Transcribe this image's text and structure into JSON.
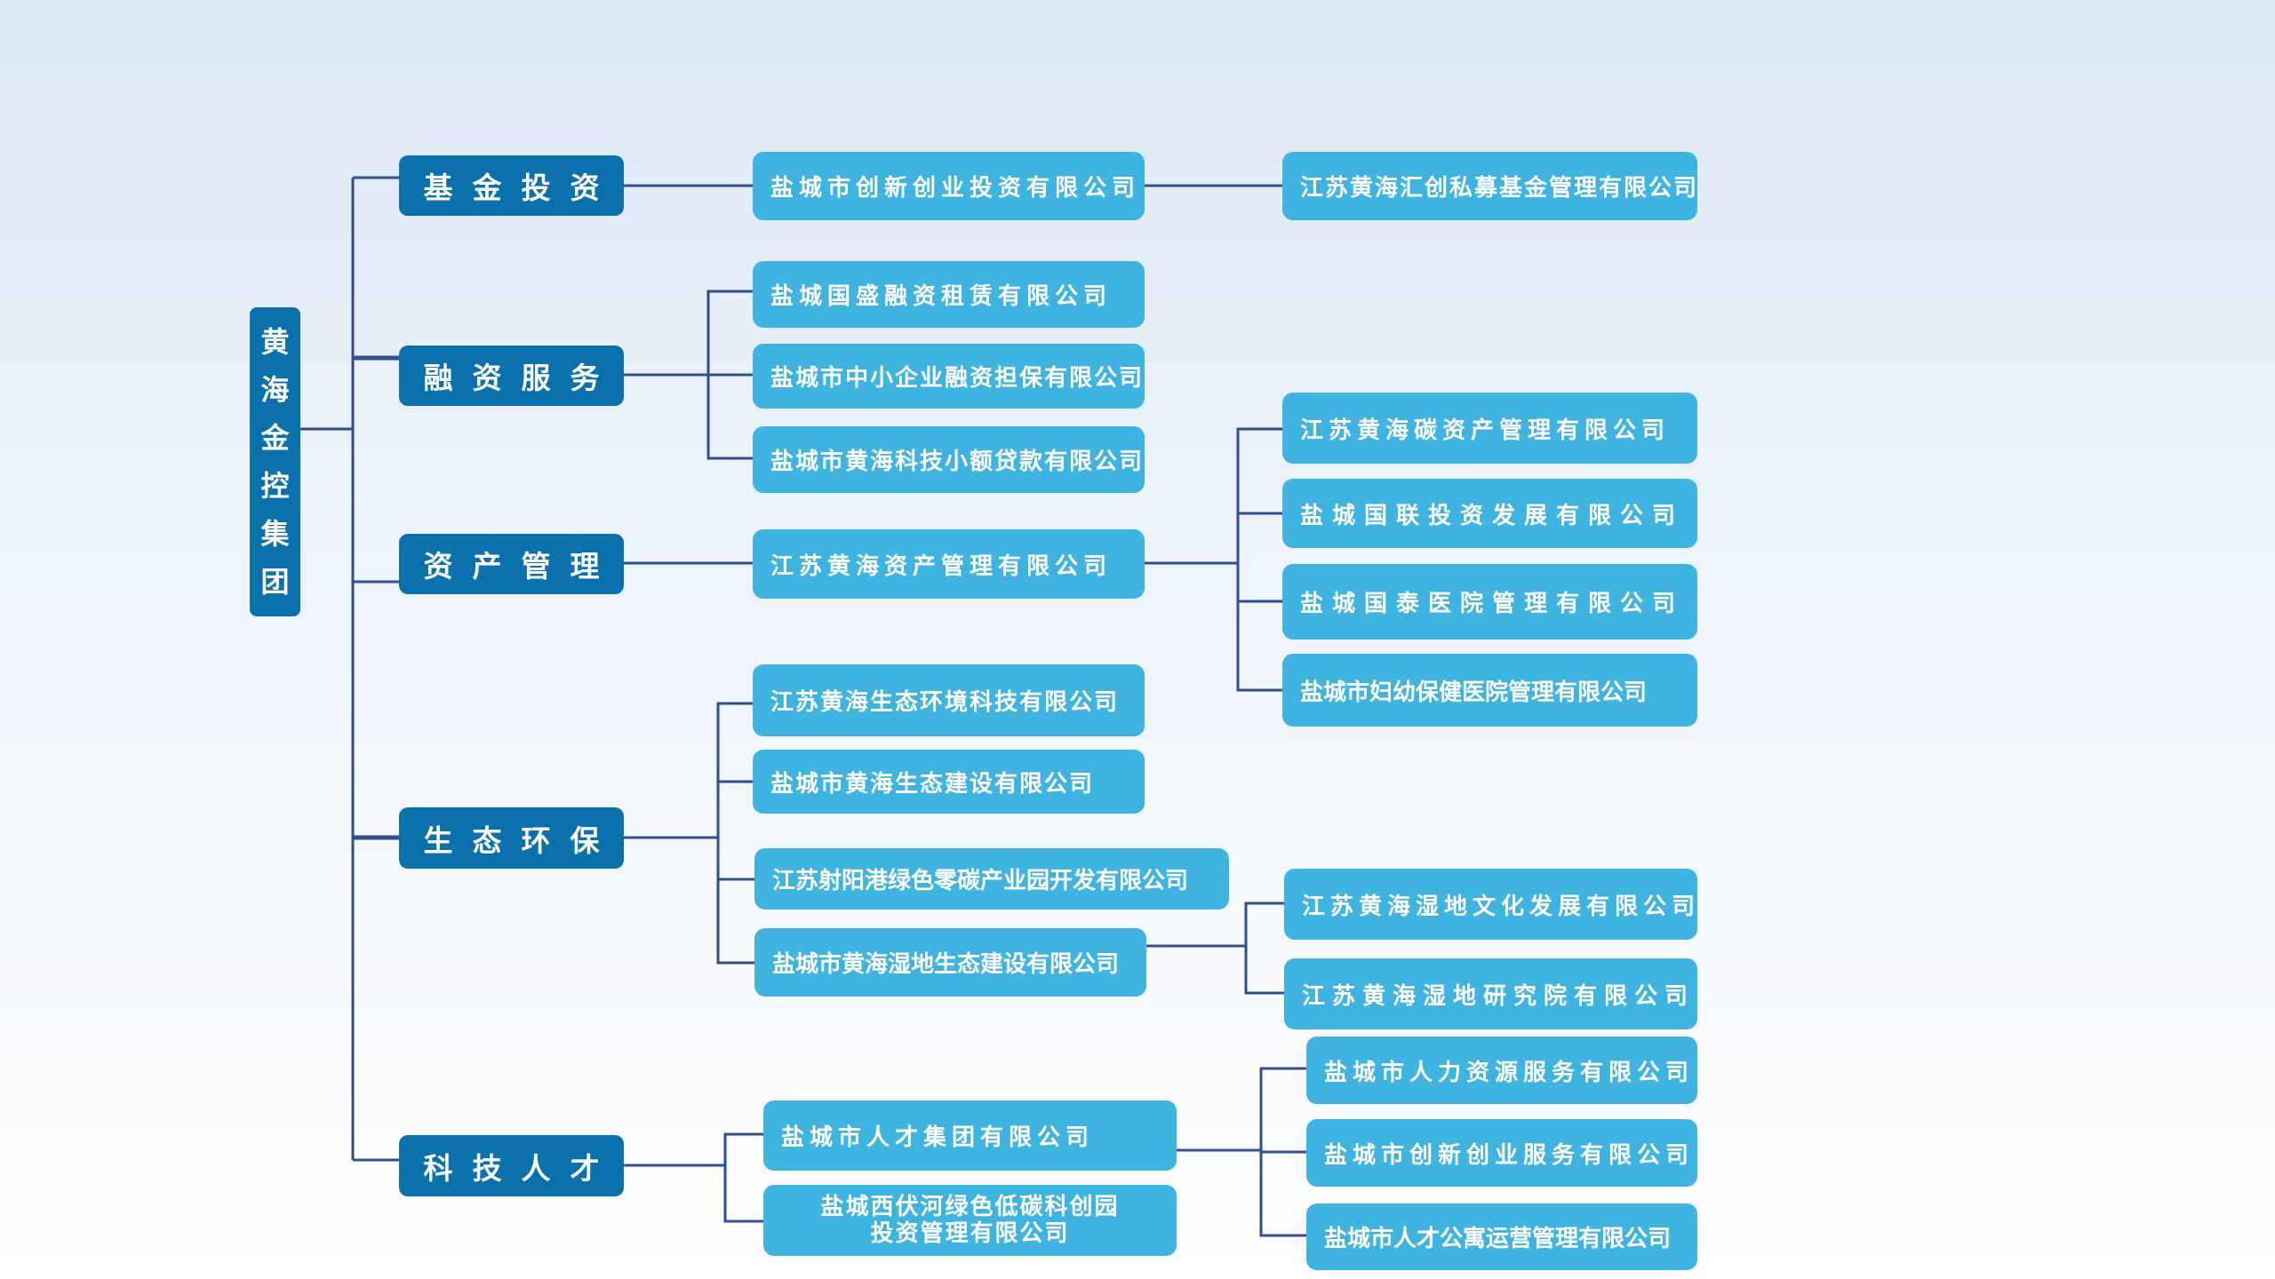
{
  "colors": {
    "level1": "#0a71ad",
    "company": "#40b4e0",
    "connector": "#2f4f8e"
  },
  "root": {
    "label": "黄海金控集团",
    "chars": [
      "黄",
      "海",
      "金",
      "控",
      "集",
      "团"
    ]
  },
  "segments": [
    {
      "label": "基金投资",
      "children": [
        {
          "label": "盐城市创新创业投资有限公司",
          "children": [
            {
              "label": "江苏黄海汇创私募基金管理有限公司"
            }
          ]
        }
      ]
    },
    {
      "label": "融资服务",
      "children": [
        {
          "label": "盐城国盛融资租赁有限公司"
        },
        {
          "label": "盐城市中小企业融资担保有限公司"
        },
        {
          "label": "盐城市黄海科技小额贷款有限公司"
        }
      ]
    },
    {
      "label": "资产管理",
      "children": [
        {
          "label": "江苏黄海资产管理有限公司",
          "children": [
            {
              "label": "江苏黄海碳资产管理有限公司"
            },
            {
              "label": "盐城国联投资发展有限公司"
            },
            {
              "label": "盐城国泰医院管理有限公司"
            },
            {
              "label": "盐城市妇幼保健医院管理有限公司"
            }
          ]
        }
      ]
    },
    {
      "label": "生态环保",
      "children": [
        {
          "label": "江苏黄海生态环境科技有限公司"
        },
        {
          "label": "盐城市黄海生态建设有限公司"
        },
        {
          "label": "江苏射阳港绿色零碳产业园开发有限公司"
        },
        {
          "label": "盐城市黄海湿地生态建设有限公司",
          "children": [
            {
              "label": "江苏黄海湿地文化发展有限公司"
            },
            {
              "label": "江苏黄海湿地研究院有限公司"
            }
          ]
        }
      ]
    },
    {
      "label": "科技人才",
      "children": [
        {
          "label": "盐城市人才集团有限公司",
          "children": [
            {
              "label": "盐城市人力资源服务有限公司"
            },
            {
              "label": "盐城市创新创业服务有限公司"
            },
            {
              "label": "盐城市人才公寓运营管理有限公司"
            }
          ]
        },
        {
          "label": "盐城西伏河绿色低碳科创园投资管理有限公司",
          "lines": [
            "盐城西伏河绿色低碳科创园",
            "投资管理有限公司"
          ]
        }
      ]
    }
  ]
}
